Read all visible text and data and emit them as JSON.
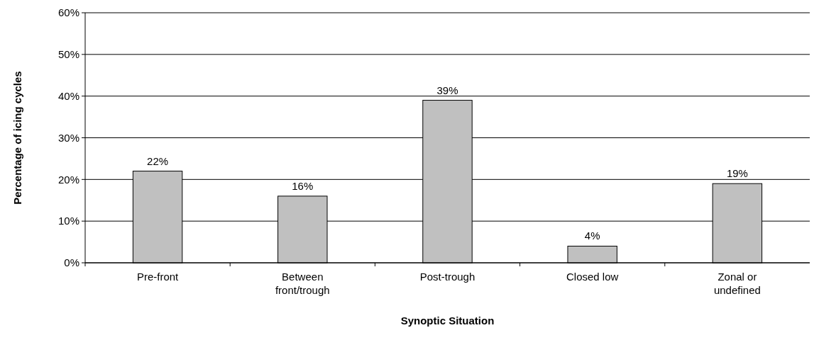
{
  "chart_data": {
    "type": "bar",
    "xlabel": "Synoptic Situation",
    "ylabel": "Percentage of icing cycles",
    "categories": [
      "Pre-front",
      "Between front/trough",
      "Post-trough",
      "Closed low",
      "Zonal or undefined"
    ],
    "values": [
      22,
      16,
      39,
      4,
      19
    ],
    "color": "#c0c0c0",
    "value_labels": [
      "22%",
      "16%",
      "39%",
      "4%",
      "19%"
    ],
    "ylim": [
      0,
      60
    ],
    "yticks": [
      {
        "value": 0,
        "label": "0%"
      },
      {
        "value": 10,
        "label": "10%"
      },
      {
        "value": 20,
        "label": "20%"
      },
      {
        "value": 30,
        "label": "30%"
      },
      {
        "value": 40,
        "label": "40%"
      },
      {
        "value": 50,
        "label": "50%"
      },
      {
        "value": 60,
        "label": "60%"
      }
    ],
    "grid": "y"
  }
}
